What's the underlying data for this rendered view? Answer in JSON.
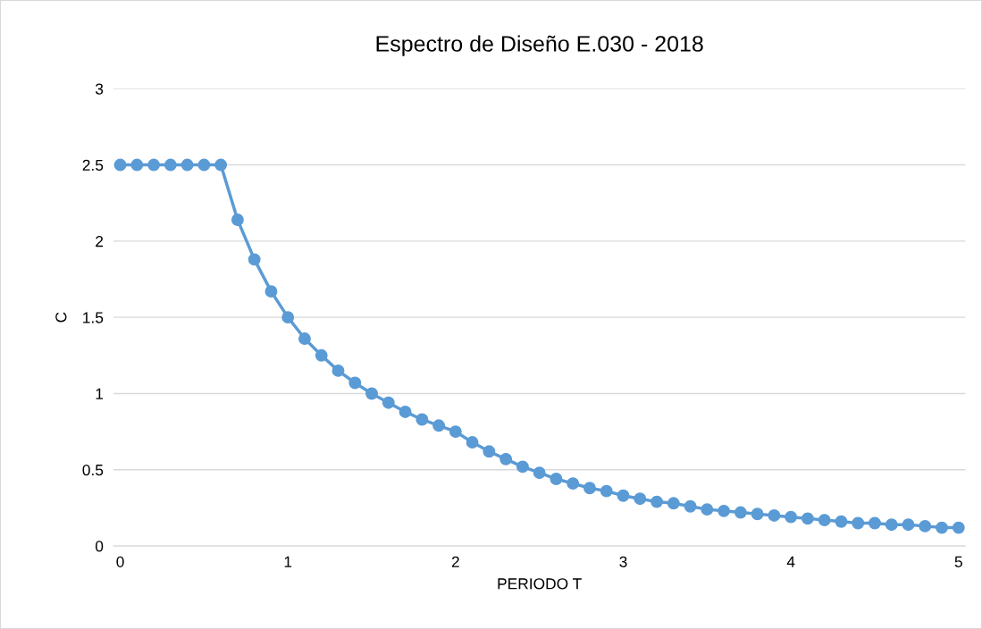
{
  "chart_data": {
    "type": "line",
    "title": "Espectro de Diseño E.030 - 2018",
    "xlabel": "PERIODO T",
    "ylabel": "C",
    "x": [
      0,
      0.1,
      0.2,
      0.3,
      0.4,
      0.5,
      0.6,
      0.7,
      0.8,
      0.9,
      1.0,
      1.1,
      1.2,
      1.3,
      1.4,
      1.5,
      1.6,
      1.7,
      1.8,
      1.9,
      2.0,
      2.1,
      2.2,
      2.3,
      2.4,
      2.5,
      2.6,
      2.7,
      2.8,
      2.9,
      3.0,
      3.1,
      3.2,
      3.3,
      3.4,
      3.5,
      3.6,
      3.7,
      3.8,
      3.9,
      4.0,
      4.1,
      4.2,
      4.3,
      4.4,
      4.5,
      4.6,
      4.7,
      4.8,
      4.9,
      5.0
    ],
    "series": [
      {
        "color": "#5b9bd5",
        "values": [
          2.5,
          2.5,
          2.5,
          2.5,
          2.5,
          2.5,
          2.5,
          2.14,
          1.88,
          1.67,
          1.5,
          1.36,
          1.25,
          1.15,
          1.07,
          1.0,
          0.94,
          0.88,
          0.83,
          0.79,
          0.75,
          0.68,
          0.62,
          0.57,
          0.52,
          0.48,
          0.44,
          0.41,
          0.38,
          0.36,
          0.33,
          0.31,
          0.29,
          0.28,
          0.26,
          0.24,
          0.23,
          0.22,
          0.21,
          0.2,
          0.19,
          0.18,
          0.17,
          0.16,
          0.15,
          0.15,
          0.14,
          0.14,
          0.13,
          0.12,
          0.12
        ]
      }
    ],
    "xlim": [
      -0.04,
      5.04
    ],
    "xticks": [
      0,
      1,
      2,
      3,
      4,
      5
    ],
    "ylim": [
      0,
      3
    ],
    "yticks": [
      0,
      0.5,
      1,
      1.5,
      2,
      2.5,
      3
    ],
    "grid": "y",
    "marker": "circle",
    "line_style": "solid",
    "legend": false
  }
}
